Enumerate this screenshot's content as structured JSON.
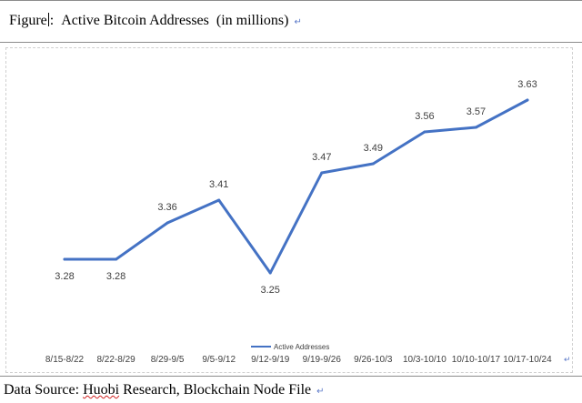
{
  "caption": {
    "prefix": "Figure",
    "title": "Active Bitcoin Addresses  (in millions)",
    "return_mark": "↵"
  },
  "source": {
    "label": "Data Source: ",
    "text_underlined": "Huobi",
    "text_rest": " Research, Blockchain Node File",
    "return_mark": "↵"
  },
  "colors": {
    "line": "#4472c4",
    "text": "#404040",
    "frame": "#8c8c8c"
  },
  "chart_data": {
    "type": "line",
    "categories": [
      "8/15-8/22",
      "8/22-8/29",
      "8/29-9/5",
      "9/5-9/12",
      "9/12-9/19",
      "9/19-9/26",
      "9/26-10/3",
      "10/3-10/10",
      "10/10-10/17",
      "10/17-10/24"
    ],
    "series": [
      {
        "name": "Active Addresses",
        "values": [
          3.28,
          3.28,
          3.36,
          3.41,
          3.25,
          3.47,
          3.49,
          3.56,
          3.57,
          3.63
        ]
      }
    ],
    "data_labels": [
      "3.28",
      "3.28",
      "3.36",
      "3.41",
      "3.25",
      "3.47",
      "3.49",
      "3.56",
      "3.57",
      "3.63"
    ],
    "legend_position": "bottom",
    "grid": false,
    "ylim": [
      3.2,
      3.7
    ]
  }
}
